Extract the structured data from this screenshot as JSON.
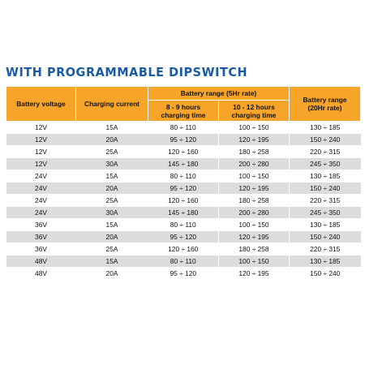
{
  "title": "WITH PROGRAMMABLE DIPSWITCH",
  "headers": {
    "battery_voltage": "Battery voltage",
    "charging_current": "Charging current",
    "range_5hr": "Battery range (5Hr rate)",
    "hours_8_9_line1": "8 - 9 hours",
    "hours_8_9_line2": "charging time",
    "hours_10_12_line1": "10 - 12 hours",
    "hours_10_12_line2": "charging time",
    "range_20hr_line1": "Battery range",
    "range_20hr_line2": "(20Hr rate)"
  },
  "rows": [
    [
      "12V",
      "15A",
      "80 ÷ 110",
      "100 ÷ 150",
      "130 ÷ 185"
    ],
    [
      "12V",
      "20A",
      "95 ÷ 120",
      "120 ÷ 195",
      "150 ÷ 240"
    ],
    [
      "12V",
      "25A",
      "120 ÷ 160",
      "180 ÷ 258",
      "220 ÷ 315"
    ],
    [
      "12V",
      "30A",
      "145 ÷ 180",
      "200 ÷ 280",
      "245 ÷ 350"
    ],
    [
      "24V",
      "15A",
      "80 ÷ 110",
      "100 ÷ 150",
      "130 ÷ 185"
    ],
    [
      "24V",
      "20A",
      "95 ÷ 120",
      "120 ÷ 195",
      "150 ÷ 240"
    ],
    [
      "24V",
      "25A",
      "120 ÷ 160",
      "180 ÷ 258",
      "220 ÷ 315"
    ],
    [
      "24V",
      "30A",
      "145 ÷ 180",
      "200 ÷ 280",
      "245 ÷ 350"
    ],
    [
      "36V",
      "15A",
      "80 ÷ 110",
      "100 ÷ 150",
      "130 ÷ 185"
    ],
    [
      "36V",
      "20A",
      "95 ÷ 120",
      "120 ÷ 195",
      "150 ÷ 240"
    ],
    [
      "36V",
      "25A",
      "120 ÷ 160",
      "180 ÷ 258",
      "220 ÷ 315"
    ],
    [
      "48V",
      "15A",
      "80 ÷ 110",
      "100 ÷ 150",
      "130 ÷ 185"
    ],
    [
      "48V",
      "20A",
      "95 ÷ 120",
      "120 ÷ 195",
      "150 ÷ 240"
    ]
  ]
}
